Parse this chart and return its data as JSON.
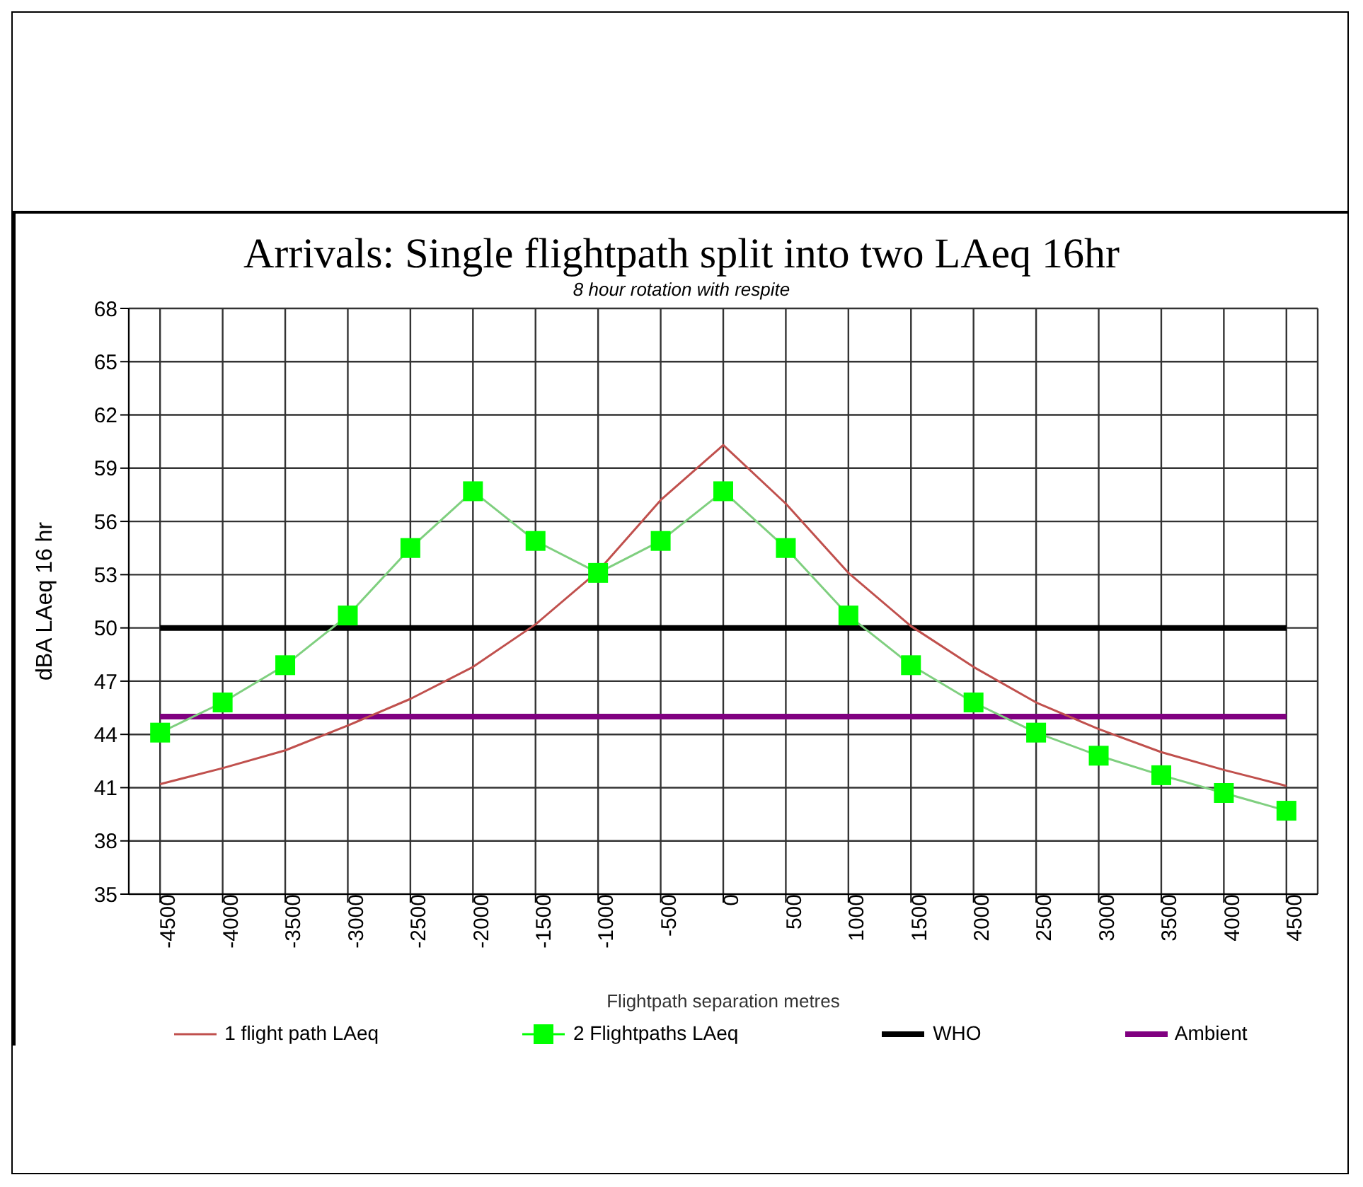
{
  "chart_data": {
    "type": "line",
    "title": "Arrivals: Single flightpath split into two LAeq 16hr",
    "subtitle": "8 hour rotation with respite",
    "xlabel": "Flightpath separation metres",
    "ylabel": "dBA LAeq 16 hr",
    "categories": [
      "-4500",
      "-4000",
      "-3500",
      "-3000",
      "-2500",
      "-2000",
      "-1500",
      "-1000",
      "-500",
      "0",
      "500",
      "1000",
      "1500",
      "2000",
      "2500",
      "3000",
      "3500",
      "4000",
      "4500"
    ],
    "series": [
      {
        "name": "1 flight path LAeq",
        "color": "#c0504d",
        "marker": "none",
        "values": [
          41.2,
          42.1,
          43.1,
          44.5,
          46.0,
          47.8,
          50.2,
          53.2,
          57.2,
          60.3,
          57.0,
          53.1,
          50.1,
          47.8,
          45.8,
          44.3,
          43.0,
          42.0,
          41.1
        ]
      },
      {
        "name": "2 Flightpaths LAeq",
        "color": "#00ff00",
        "marker": "square",
        "values": [
          44.1,
          45.8,
          47.9,
          50.7,
          54.5,
          57.7,
          54.9,
          53.1,
          54.9,
          57.7,
          54.5,
          50.7,
          47.9,
          45.8,
          44.1,
          42.8,
          41.7,
          40.7,
          39.7
        ]
      }
    ],
    "ref_lines": [
      {
        "axis": "y",
        "value": 50,
        "label": "WHO",
        "color": "#000000"
      },
      {
        "axis": "y",
        "value": 45,
        "label": "Ambient",
        "color": "#800080"
      }
    ],
    "ylim": [
      35,
      68
    ],
    "yticks": [
      35,
      38,
      41,
      44,
      47,
      50,
      53,
      56,
      59,
      62,
      65,
      68
    ],
    "grid": true,
    "legend": "bottom"
  }
}
